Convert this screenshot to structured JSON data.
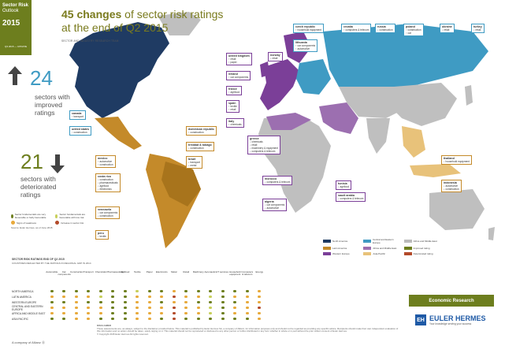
{
  "brand": {
    "line1": "Sector Risk",
    "line2": "Outlook",
    "year": "2015",
    "issue": "Q3 2015 — UPDATE"
  },
  "headline": {
    "bold": "45 changes",
    "rest1": " of sector risk ratings",
    "line2": "at the end of Q2 2015"
  },
  "subhead": "SECTOR AND INDUSTRY RESEARCH TEAM",
  "improved": {
    "count": "24",
    "text": [
      "sectors with",
      "improved",
      "ratings"
    ]
  },
  "deteriorated": {
    "count": "21",
    "text": [
      "sectors with",
      "deteriorated",
      "ratings"
    ]
  },
  "icons": {
    "improved": "up-arrow-icon",
    "deteriorated": "down-arrow-icon"
  },
  "boxes": [
    {
      "id": "canada",
      "title": "canada",
      "items": [
        "↑ transport"
      ]
    },
    {
      "id": "usa",
      "title": "united states",
      "items": [
        "↑ construction"
      ]
    },
    {
      "id": "mexico",
      "title": "mexico",
      "items": [
        "↑ automotive",
        "↑ construction"
      ]
    },
    {
      "id": "costarica",
      "title": "costa rica",
      "items": [
        "↓ construction",
        "↓ pharmaceuticals",
        "↓ agrifood",
        "↓ electronics"
      ]
    },
    {
      "id": "venezuela",
      "title": "venezuela",
      "items": [
        "↓ car components",
        "↓ construction"
      ]
    },
    {
      "id": "peru",
      "title": "peru",
      "items": [
        "↓ textile"
      ]
    },
    {
      "id": "dominican",
      "title": "dominican republic",
      "items": [
        "↑ construction"
      ]
    },
    {
      "id": "trinidad",
      "title": "trinidad & tobago",
      "items": [
        "↓ construction"
      ]
    },
    {
      "id": "brazil",
      "title": "brazil",
      "items": [
        "↓ transport",
        "↓ metal"
      ]
    },
    {
      "id": "uk",
      "title": "united kingdom",
      "items": [
        "↑ retail",
        "↑ paper"
      ]
    },
    {
      "id": "norway",
      "title": "norway",
      "items": [
        "↓ retail"
      ]
    },
    {
      "id": "ireland",
      "title": "ireland",
      "items": [
        "↑ car components"
      ]
    },
    {
      "id": "france",
      "title": "france",
      "items": [
        "↑ agrifood"
      ]
    },
    {
      "id": "spain",
      "title": "spain",
      "items": [
        "↑ textile",
        "↑ retail"
      ]
    },
    {
      "id": "italy",
      "title": "italy",
      "items": [
        "↑ chemicals"
      ]
    },
    {
      "id": "greece",
      "title": "greece",
      "items": [
        "↓ chemicals",
        "↓ retail",
        "↓ machinery & equipment",
        "↓ computers & telecom"
      ]
    },
    {
      "id": "czech",
      "title": "czech republic",
      "items": [
        "↑ household equipment"
      ]
    },
    {
      "id": "lithuania",
      "title": "lithuania",
      "items": [
        "↑ car components",
        "↑ automotive"
      ]
    },
    {
      "id": "croatia",
      "title": "croatia",
      "items": [
        "↑ computers & telecom"
      ]
    },
    {
      "id": "russia",
      "title": "russia",
      "items": [
        "↓ construction"
      ]
    },
    {
      "id": "poland",
      "title": "poland",
      "items": [
        "↑ construction",
        "↑ car"
      ]
    },
    {
      "id": "ukraine",
      "title": "ukraine",
      "items": [
        "↓ retail"
      ]
    },
    {
      "id": "turkey",
      "title": "turkey",
      "items": [
        "↓ retail"
      ]
    },
    {
      "id": "morocco",
      "title": "morocco",
      "items": [
        "↓ computers & telecom"
      ]
    },
    {
      "id": "algeria",
      "title": "algeria",
      "items": [
        "↓ car components",
        "↓ automotive"
      ]
    },
    {
      "id": "tunisia",
      "title": "tunisia",
      "items": [
        "↓ agrifood"
      ]
    },
    {
      "id": "saudi",
      "title": "saudi arabia",
      "items": [
        "↓ computers & telecom"
      ]
    },
    {
      "id": "thailand",
      "title": "thailand",
      "items": [
        "↓ household equipment"
      ]
    },
    {
      "id": "indonesia",
      "title": "indonesia",
      "items": [
        "↓ automotive",
        "↓ construction"
      ]
    }
  ],
  "map_legend": [
    {
      "label": "North America",
      "color": "#1f3b63"
    },
    {
      "label": "Central and Eastern Europe",
      "color": "#3f9bc3"
    },
    {
      "label": "Africa and Middle East",
      "color": "#bbbbbb"
    },
    {
      "label": "Latin America",
      "color": "#c48a2a"
    },
    {
      "label": "Africa and Middle East",
      "color": "#9c6fb0"
    },
    {
      "label": "Improved rating",
      "color": "#6d7e1e"
    },
    {
      "label": "Western Europe",
      "color": "#7b3f98"
    },
    {
      "label": "Asia-Pacific",
      "color": "#e8c27a"
    },
    {
      "label": "Deteriorated rating",
      "color": "#b34a2a"
    }
  ],
  "rating_legend": [
    {
      "label": "Sector fundamentals are very favourable or fairly favourable",
      "color": "#6d7e1e"
    },
    {
      "label": "Sector fundamentals are favourable with low risk",
      "color": "#c7cf5a"
    },
    {
      "label": "Signs of weakness",
      "color": "#e8a93a"
    },
    {
      "label": "Increase in sector risk",
      "color": "#b34a2a"
    }
  ],
  "rating_note": "Source: Euler Hermes, as of June 2015",
  "table": {
    "title": "SECTOR RISK RATINGS END OF Q2 2015",
    "subtitle": "COUNTRIES REFLECTED BY THE RATINGS IN REGIONAL GDP IN 2014",
    "columns": [
      "Automobile",
      "Car components",
      "Construction",
      "Transport",
      "Chemicals",
      "Pharmaceuticals",
      "Agrifood",
      "Textile",
      "Paper",
      "Electronics",
      "Metal",
      "Retail",
      "Machinery",
      "Aeronautics",
      "IT services",
      "Household equipment",
      "Computers & telecom",
      "Energy"
    ],
    "rows": [
      {
        "label": "NORTH AMERICA",
        "ratings": [
          "g",
          "g",
          "g",
          "g",
          "g",
          "g",
          "g",
          "l",
          "g",
          "g",
          "o",
          "g",
          "g",
          "g",
          "g",
          "g",
          "g",
          "o"
        ]
      },
      {
        "label": "LATIN AMERICA",
        "ratings": [
          "o",
          "o",
          "o",
          "o",
          "l",
          "g",
          "g",
          "o",
          "o",
          "o",
          "r",
          "o",
          "o",
          "l",
          "g",
          "o",
          "o",
          "o"
        ]
      },
      {
        "label": "WESTERN EUROPE",
        "ratings": [
          "g",
          "g",
          "o",
          "g",
          "g",
          "g",
          "g",
          "o",
          "o",
          "g",
          "o",
          "o",
          "g",
          "g",
          "g",
          "g",
          "o",
          "o"
        ]
      },
      {
        "label": "CENTRAL AND EASTERN EUROPE",
        "ratings": [
          "o",
          "o",
          "o",
          "o",
          "o",
          "g",
          "g",
          "o",
          "o",
          "o",
          "r",
          "o",
          "o",
          "l",
          "g",
          "o",
          "o",
          "r"
        ]
      },
      {
        "label": "AFRICA AND MIDDLE EAST",
        "ratings": [
          "o",
          "o",
          "o",
          "o",
          "o",
          "g",
          "g",
          "o",
          "o",
          "o",
          "r",
          "o",
          "o",
          "l",
          "g",
          "o",
          "o",
          "o"
        ]
      },
      {
        "label": "ASIA PACIFIC",
        "ratings": [
          "g",
          "g",
          "o",
          "o",
          "g",
          "g",
          "g",
          "o",
          "o",
          "g",
          "r",
          "g",
          "g",
          "g",
          "g",
          "g",
          "g",
          "o"
        ]
      }
    ],
    "colors": {
      "g": "#6d7e1e",
      "l": "#c7cf5a",
      "o": "#e8a93a",
      "r": "#b34a2a"
    }
  },
  "econ_research": "Economic Research",
  "euler": {
    "logo": "EH",
    "name": "EULER HERMES",
    "tagline": "Your knowledge serving your success"
  },
  "disclaimer": {
    "title": "DISCLAIMER",
    "text": "These assessments are, as always, subject to the disclaimer provided below. This material is published by Euler Hermes SA, a company of Allianz, for information purposes only and should not be regarded as providing any specific advice. Recipients should make their own independent evaluation of this information and no action should be taken, solely relying on it. This material should not be reproduced or disclosed to any other person or further distributed in any form whether in whole or in part without the prior written consent of Euler Hermes.",
    "copyright": "© Copyright 2015 Euler Hermes All rights reserved."
  },
  "allianz": "A company of Allianz ⓪"
}
